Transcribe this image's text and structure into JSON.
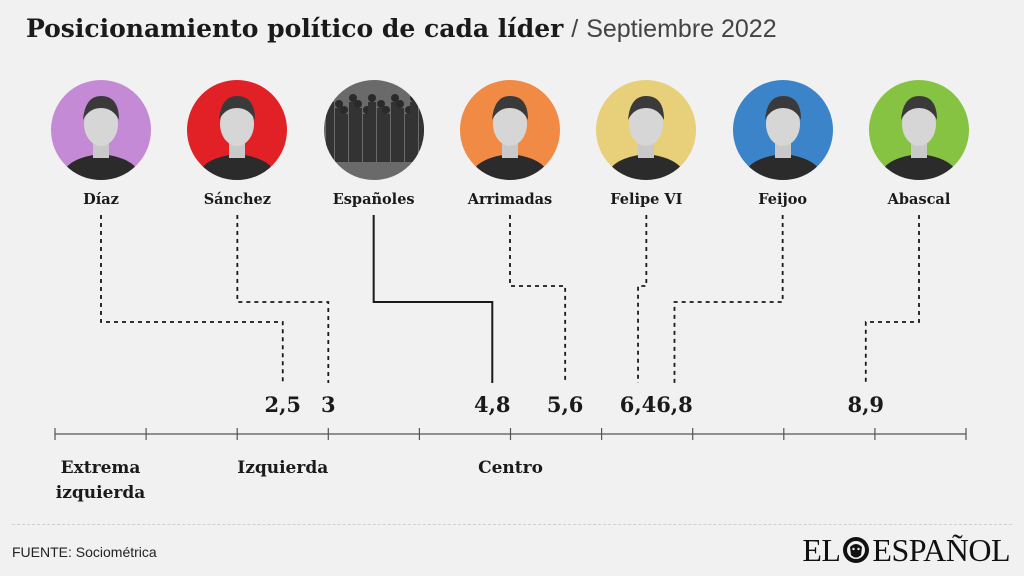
{
  "header": {
    "title": "Posicionamiento político de cada líder",
    "separator": "/",
    "subtitle": "Septiembre 2022"
  },
  "chart_data": {
    "type": "scatter",
    "title": "Posicionamiento político de cada líder",
    "subtitle": "Septiembre 2022",
    "x_axis": {
      "min": 0,
      "max": 10,
      "ticks": [
        0,
        1,
        2,
        3,
        4,
        5,
        6,
        7,
        8,
        9,
        10
      ]
    },
    "scale_labels": [
      {
        "text": "Extrema izquierda",
        "x": 0.5
      },
      {
        "text": "Izquierda",
        "x": 2.5
      },
      {
        "text": "Centro",
        "x": 5
      }
    ],
    "points": [
      {
        "name": "Díaz",
        "value": 2.5,
        "label": "2,5",
        "color": "#c58ad6",
        "style": "dotted"
      },
      {
        "name": "Sánchez",
        "value": 3,
        "label": "3",
        "color": "#e22127",
        "style": "dotted"
      },
      {
        "name": "Españoles",
        "value": 4.8,
        "label": "4,8",
        "color": "#6a6a6a",
        "style": "solid"
      },
      {
        "name": "Arrimadas",
        "value": 5.6,
        "label": "5,6",
        "color": "#f08a44",
        "style": "dotted"
      },
      {
        "name": "Felipe VI",
        "value": 6.4,
        "label": "6,4",
        "color": "#e8cf7a",
        "style": "dotted"
      },
      {
        "name": "Feijoo",
        "value": 6.8,
        "label": "6,8",
        "color": "#3b84c9",
        "style": "dotted"
      },
      {
        "name": "Abascal",
        "value": 8.9,
        "label": "8,9",
        "color": "#86c342",
        "style": "dotted"
      }
    ]
  },
  "footer": {
    "source": "FUENTE: Sociométrica",
    "logo_left": "EL",
    "logo_right": "ESPAÑOL"
  }
}
